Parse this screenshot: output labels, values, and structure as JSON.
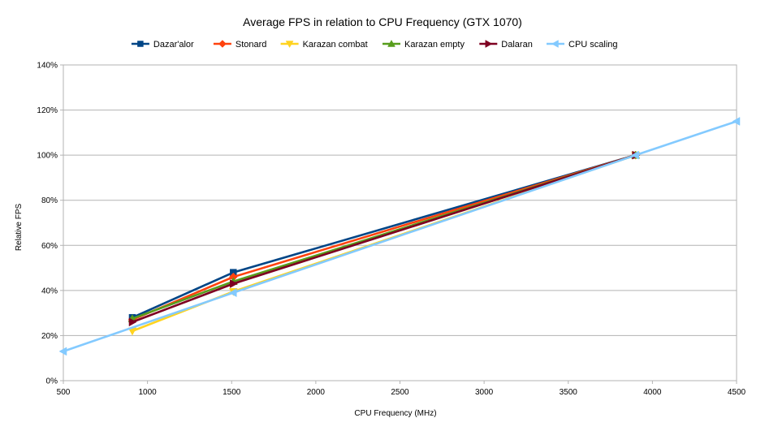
{
  "chart_data": {
    "type": "line",
    "title": "Average FPS in relation to CPU Frequency (GTX 1070)",
    "xlabel": "CPU Frequency (MHz)",
    "ylabel": "Relative FPS",
    "xlim": [
      500,
      4500
    ],
    "ylim": [
      0,
      140
    ],
    "x_ticks": [
      500,
      1000,
      1500,
      2000,
      2500,
      3000,
      3500,
      4000,
      4500
    ],
    "y_ticks": [
      0,
      20,
      40,
      60,
      80,
      100,
      120,
      140
    ],
    "y_tick_labels": [
      "0%",
      "20%",
      "40%",
      "60%",
      "80%",
      "100%",
      "120%",
      "140%"
    ],
    "grid": "horizontal",
    "legend_position": "top-center",
    "series": [
      {
        "name": "Dazar'alor",
        "color": "#004586",
        "marker": "square",
        "x": [
          910,
          1510,
          3900
        ],
        "y": [
          28,
          48,
          100
        ]
      },
      {
        "name": "Stonard",
        "color": "#ff420e",
        "marker": "diamond",
        "x": [
          910,
          1510,
          3900
        ],
        "y": [
          27,
          46,
          100
        ]
      },
      {
        "name": "Karazan combat",
        "color": "#ffd320",
        "marker": "triangle-down",
        "x": [
          910,
          1510,
          3900
        ],
        "y": [
          22,
          39.5,
          100
        ]
      },
      {
        "name": "Karazan empty",
        "color": "#579d1c",
        "marker": "triangle-up",
        "x": [
          910,
          1510,
          3900
        ],
        "y": [
          27.5,
          44,
          100
        ]
      },
      {
        "name": "Dalaran",
        "color": "#7e0021",
        "marker": "triangle-right",
        "x": [
          910,
          1510,
          3900
        ],
        "y": [
          26,
          43,
          100
        ]
      },
      {
        "name": "CPU scaling",
        "color": "#83caff",
        "marker": "triangle-left",
        "x": [
          500,
          1510,
          3900,
          4500
        ],
        "y": [
          13,
          39,
          100,
          115
        ]
      }
    ]
  }
}
